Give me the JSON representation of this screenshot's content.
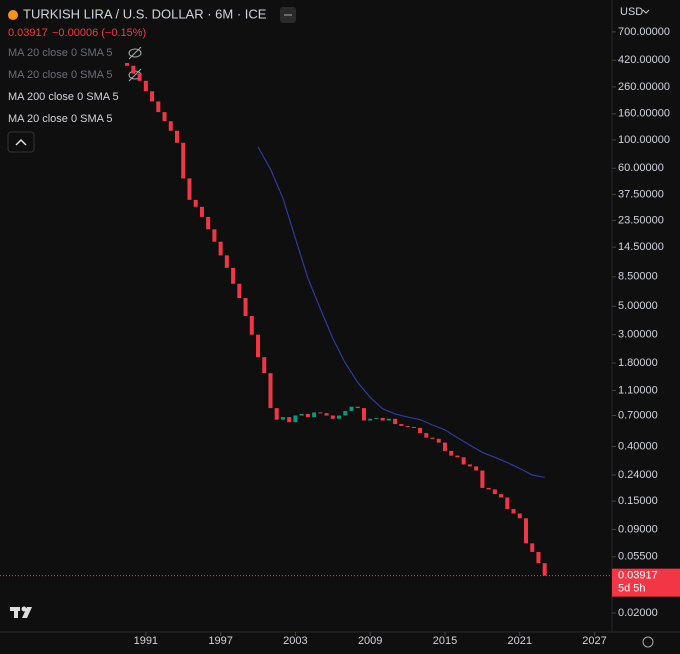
{
  "chart_data": {
    "type": "candlestick",
    "title": "TURKISH LIRA / U.S. DOLLAR · 6M · ICE",
    "change": "−0.00006 (−0.15%)",
    "indicators": [
      "MA 20 close 0 SMA 5",
      "MA 20 close 0 SMA 5",
      "MA 200 close 0 SMA 5",
      "MA 20 close 0 SMA 5"
    ],
    "currency": "USD",
    "countdown": "5d 5h",
    "log_scale": true,
    "up_color": "#089981",
    "down_color": "#f23645",
    "x": [
      1989.5,
      1990,
      1990.5,
      1991,
      1991.5,
      1992,
      1992.5,
      1993,
      1993.5,
      1994,
      1994.5,
      1995,
      1995.5,
      1996,
      1996.5,
      1997,
      1997.5,
      1998,
      1998.5,
      1999,
      1999.5,
      2000,
      2000.5,
      2001,
      2001.5,
      2002,
      2002.5,
      2003,
      2003.5,
      2004,
      2004.5,
      2005,
      2005.5,
      2006,
      2006.5,
      2007,
      2007.5,
      2008,
      2008.5,
      2009,
      2009.5,
      2010,
      2010.5,
      2011,
      2011.5,
      2012,
      2012.5,
      2013,
      2013.5,
      2014,
      2014.5,
      2015,
      2015.5,
      2016,
      2016.5,
      2017,
      2017.5,
      2018,
      2018.5,
      2019,
      2019.5,
      2020,
      2020.5,
      2021,
      2021.5,
      2022,
      2022.5,
      2023
    ],
    "open": [
      400,
      380,
      330,
      290,
      240,
      200,
      165,
      140,
      118,
      95,
      50,
      34,
      30,
      25,
      20,
      16,
      12.5,
      10,
      7.5,
      5.8,
      4.2,
      3,
      2,
      1.5,
      0.8,
      0.65,
      0.68,
      0.62,
      0.7,
      0.72,
      0.68,
      0.74,
      0.73,
      0.7,
      0.66,
      0.7,
      0.76,
      0.82,
      0.8,
      0.64,
      0.66,
      0.67,
      0.64,
      0.66,
      0.6,
      0.58,
      0.57,
      0.56,
      0.51,
      0.47,
      0.46,
      0.43,
      0.37,
      0.34,
      0.33,
      0.29,
      0.28,
      0.26,
      0.19,
      0.185,
      0.17,
      0.16,
      0.13,
      0.12,
      0.11,
      0.07,
      0.06,
      0.049
    ],
    "close": [
      380,
      330,
      290,
      240,
      200,
      165,
      140,
      118,
      95,
      50,
      34,
      30,
      25,
      20,
      16,
      12.5,
      10,
      7.5,
      5.8,
      4.2,
      3,
      2,
      1.5,
      0.8,
      0.65,
      0.68,
      0.62,
      0.7,
      0.72,
      0.68,
      0.74,
      0.73,
      0.7,
      0.66,
      0.7,
      0.76,
      0.82,
      0.8,
      0.64,
      0.66,
      0.67,
      0.64,
      0.66,
      0.6,
      0.58,
      0.57,
      0.56,
      0.51,
      0.47,
      0.46,
      0.43,
      0.37,
      0.34,
      0.33,
      0.29,
      0.28,
      0.26,
      0.19,
      0.185,
      0.17,
      0.16,
      0.13,
      0.12,
      0.11,
      0.07,
      0.06,
      0.049,
      0.03917
    ],
    "ma": {
      "color": "#2f3a9e",
      "x": [
        2000,
        2001,
        2002,
        2003,
        2004,
        2005,
        2006,
        2007,
        2008,
        2009,
        2010,
        2011,
        2012,
        2013,
        2014,
        2015,
        2016,
        2017,
        2018,
        2019,
        2020,
        2021,
        2022,
        2023
      ],
      "values": [
        88,
        59,
        35,
        17,
        8.3,
        4.8,
        2.8,
        1.8,
        1.27,
        0.97,
        0.79,
        0.72,
        0.68,
        0.65,
        0.59,
        0.54,
        0.47,
        0.41,
        0.36,
        0.33,
        0.3,
        0.27,
        0.24,
        0.23
      ]
    },
    "xlim": [
      1979.3,
      2028.4
    ],
    "xticks": [
      1991,
      1997,
      2003,
      2009,
      2015,
      2021,
      2027
    ],
    "ylim": [
      0.0142,
      1242
    ],
    "yticks": [
      {
        "value": 700,
        "label": "700.00000"
      },
      {
        "value": 420,
        "label": "420.00000"
      },
      {
        "value": 260,
        "label": "260.00000"
      },
      {
        "value": 160,
        "label": "160.00000"
      },
      {
        "value": 100,
        "label": "100.00000"
      },
      {
        "value": 60,
        "label": "60.00000"
      },
      {
        "value": 37.5,
        "label": "37.50000"
      },
      {
        "value": 23.5,
        "label": "23.50000"
      },
      {
        "value": 14.5,
        "label": "14.50000"
      },
      {
        "value": 8.5,
        "label": "8.50000"
      },
      {
        "value": 5,
        "label": "5.00000"
      },
      {
        "value": 3,
        "label": "3.00000"
      },
      {
        "value": 1.8,
        "label": "1.80000"
      },
      {
        "value": 1.1,
        "label": "1.10000"
      },
      {
        "value": 0.7,
        "label": "0.70000"
      },
      {
        "value": 0.4,
        "label": "0.40000"
      },
      {
        "value": 0.24,
        "label": "0.24000"
      },
      {
        "value": 0.15,
        "label": "0.15000"
      },
      {
        "value": 0.09,
        "label": "0.09000"
      },
      {
        "value": 0.055,
        "label": "0.05500"
      },
      {
        "value": 0.02,
        "label": "0.02000"
      }
    ]
  }
}
